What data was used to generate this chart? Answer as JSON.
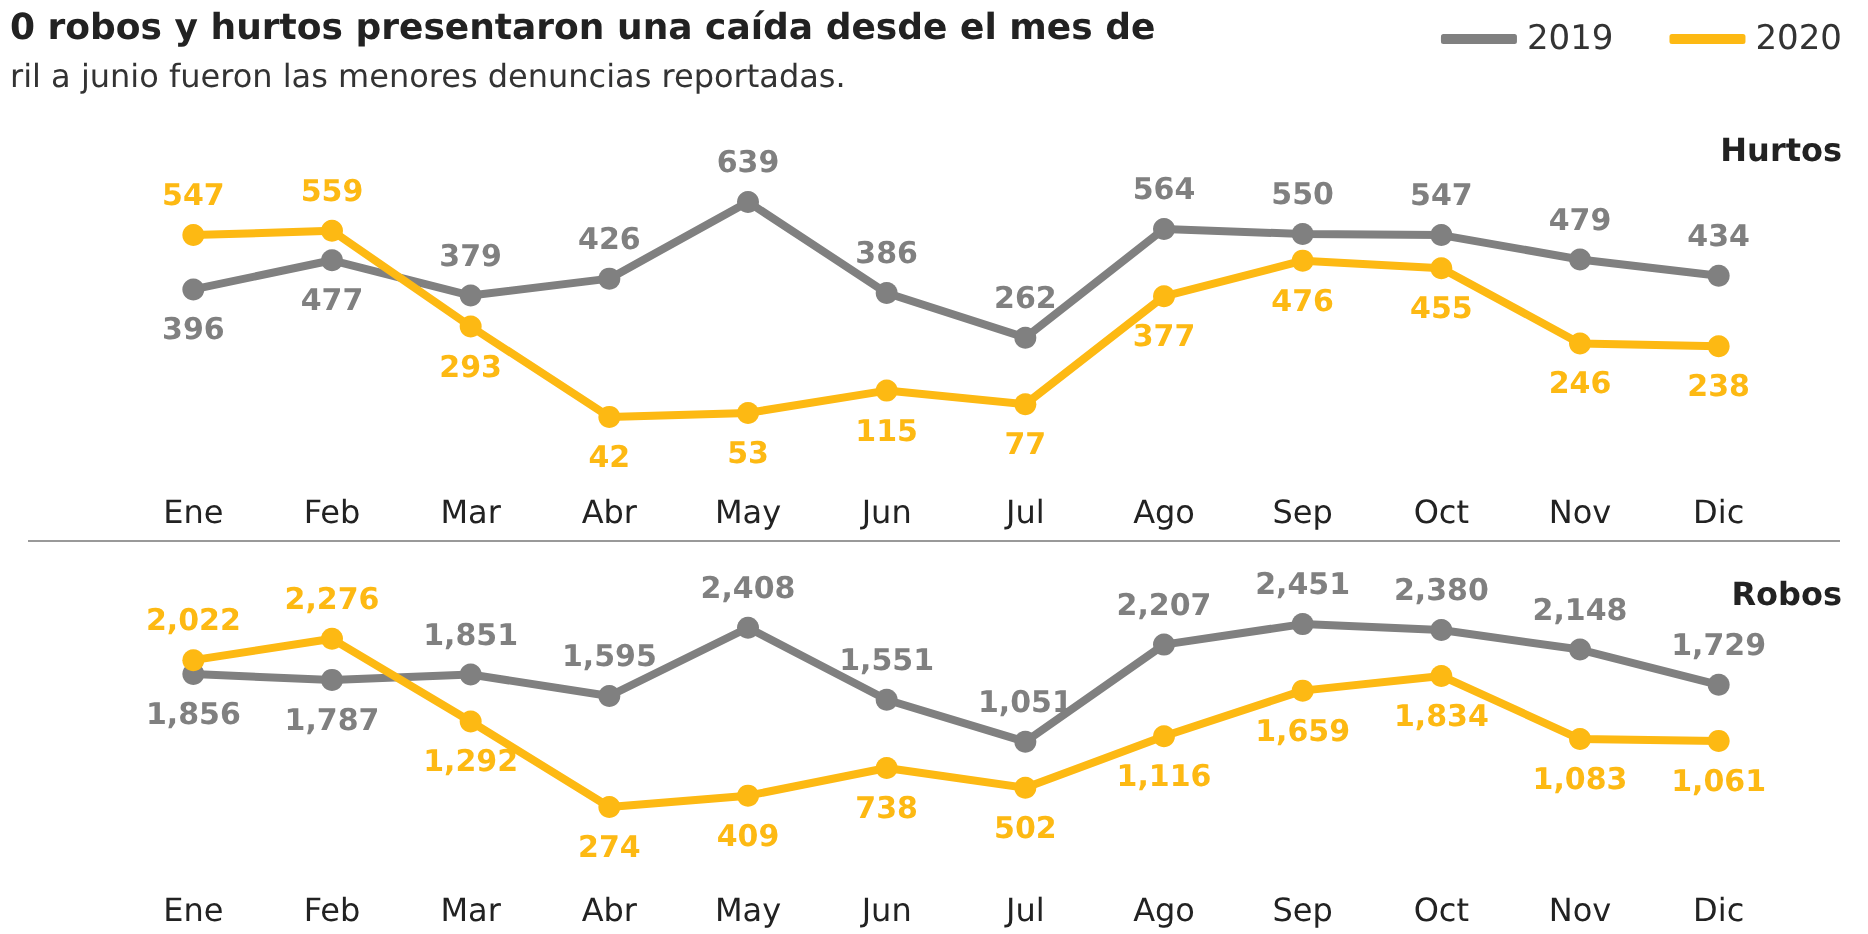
{
  "chart_data": [
    {
      "type": "line",
      "title": "0 robos y hurtos presentaron una caída desde el mes de",
      "subtitle": "ril a junio fueron las menores denuncias reportadas.",
      "annotations": [
        "Hurtos"
      ],
      "categories": [
        "Ene",
        "Feb",
        "Mar",
        "Abr",
        "May",
        "Jun",
        "Jul",
        "Ago",
        "Sep",
        "Oct",
        "Nov",
        "Dic"
      ],
      "series": [
        {
          "name": "2019",
          "color": "#808080",
          "values": [
            396,
            477,
            379,
            426,
            639,
            386,
            262,
            564,
            550,
            547,
            479,
            434
          ]
        },
        {
          "name": "2020",
          "color": "#fdb913",
          "values": [
            547,
            559,
            293,
            42,
            53,
            115,
            77,
            377,
            476,
            455,
            246,
            238
          ]
        }
      ],
      "data_labels": true,
      "marker": "circle",
      "legend": "top right",
      "grid": false
    },
    {
      "type": "line",
      "annotations": [
        "Robos"
      ],
      "categories": [
        "Ene",
        "Feb",
        "Mar",
        "Abr",
        "May",
        "Jun",
        "Jul",
        "Ago",
        "Sep",
        "Oct",
        "Nov",
        "Dic"
      ],
      "series": [
        {
          "name": "2019",
          "color": "#808080",
          "values": [
            1856,
            1787,
            1851,
            1595,
            2408,
            1551,
            1051,
            2207,
            2451,
            2380,
            2148,
            1729
          ],
          "value_labels": [
            "1,856",
            "1,787",
            "1,851",
            "1,595",
            "2,408",
            "1,551",
            "1,051",
            "2,207",
            "2,451",
            "2,380",
            "2,148",
            "1,729"
          ]
        },
        {
          "name": "2020",
          "color": "#fdb913",
          "values": [
            2022,
            2276,
            1292,
            274,
            409,
            738,
            502,
            1116,
            1659,
            1834,
            1083,
            1061
          ],
          "value_labels": [
            "2,022",
            "2,276",
            "1,292",
            "274",
            "409",
            "738",
            "502",
            "1,116",
            "1,659",
            "1,834",
            "1,083",
            "1,061"
          ]
        }
      ],
      "marker": "circle",
      "legend": false,
      "grid": false
    }
  ]
}
